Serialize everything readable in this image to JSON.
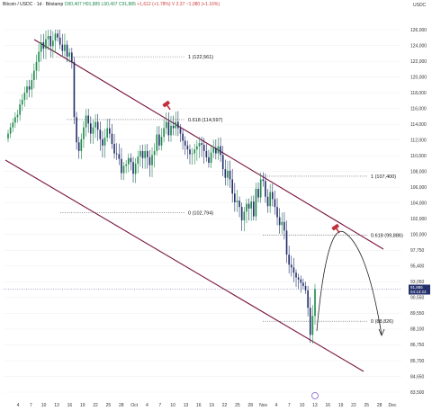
{
  "header": {
    "symbol": "Bitcoin / USDC · 1d · Bitstamp",
    "ohlc": "O90,407 H91,885 L90,407 C91,885",
    "change": "+1,612 (+1.78%)  V 2.37  ~1,080  (+1.16%)",
    "axis_unit": "USDC"
  },
  "colors": {
    "up": "#1e8a4c",
    "down": "#24306b",
    "channel": "#7a1540",
    "fib_dotted": "#555555",
    "projection": "#222222",
    "marker": "#c0303c",
    "price_badge": "#24306b"
  },
  "chart_data": {
    "type": "candlestick",
    "title": "",
    "y_axis": {
      "ticks": [
        "126,000",
        "124,000",
        "122,000",
        "120,000",
        "118,000",
        "116,000",
        "114,000",
        "112,000",
        "110,000",
        "108,000",
        "106,000",
        "104,000",
        "102,000",
        "100,000",
        "97,750",
        "95,400",
        "93,050",
        "90,550",
        "89,550",
        "88,100",
        "86,750",
        "85,700",
        "84,650",
        "83,500"
      ],
      "current_price": "91,885",
      "current_sub": "04:13:23"
    },
    "x_axis": {
      "ticks": [
        "4",
        "7",
        "10",
        "13",
        "16",
        "19",
        "22",
        "25",
        "28",
        "Oct",
        "4",
        "7",
        "10",
        "13",
        "16",
        "19",
        "22",
        "25",
        "28",
        "Nov",
        "4",
        "7",
        "10",
        "13",
        "16",
        "19",
        "22",
        "25",
        "28",
        "Dec"
      ]
    },
    "fib_levels": [
      {
        "label": "1 (122,561)",
        "price": 122561
      },
      {
        "label": "0.618 (114,597)",
        "price": 114597
      },
      {
        "label": "0 (102,794)",
        "price": 102794
      },
      {
        "label": "1 (107,400)",
        "price": 107400
      },
      {
        "label": "0.618 (99,886)",
        "price": 99886
      },
      {
        "label": "0 (88,826)",
        "price": 88826
      }
    ],
    "closes": [
      112800,
      113600,
      114200,
      114900,
      115200,
      116500,
      117100,
      118000,
      118800,
      118400,
      119600,
      120800,
      121900,
      123200,
      124400,
      123600,
      124800,
      125200,
      123900,
      124600,
      125500,
      125000,
      124100,
      123300,
      124100,
      122600,
      123100,
      121900,
      114900,
      111700,
      110600,
      112100,
      113600,
      115100,
      114100,
      112800,
      113600,
      114300,
      113300,
      112100,
      111300,
      112300,
      113500,
      112800,
      111500,
      110300,
      110200,
      109600,
      107800,
      108700,
      108900,
      109700,
      109200,
      107700,
      109000,
      109900,
      110600,
      109700,
      110600,
      109800,
      108800,
      110100,
      110600,
      112700,
      111300,
      112400,
      113500,
      114300,
      112600,
      113800,
      113500,
      114300,
      113500,
      112800,
      111900,
      111300,
      110800,
      110200,
      110300,
      110800,
      111200,
      111600,
      111400,
      110600,
      109800,
      109100,
      110400,
      111000,
      110300,
      111200,
      110100,
      108300,
      107200,
      108100,
      107000,
      105200,
      104100,
      104300,
      103500,
      101800,
      102900,
      103900,
      103300,
      104200,
      102300,
      105800,
      104700,
      107000,
      106800,
      104800,
      103600,
      105400,
      104500,
      103500,
      102200,
      101200,
      101600,
      100500,
      97100,
      95600,
      95200,
      94400,
      93700,
      93400,
      92900,
      92400,
      91700,
      89900,
      87600,
      89300,
      91885
    ],
    "series": [
      {
        "name": "Bitcoin / USDC",
        "note": "daily candles, approx."
      }
    ]
  },
  "annotations": {
    "projection": "arc from ~89,500 up to ~100,500 at channel top, then down toward ~88,800"
  }
}
